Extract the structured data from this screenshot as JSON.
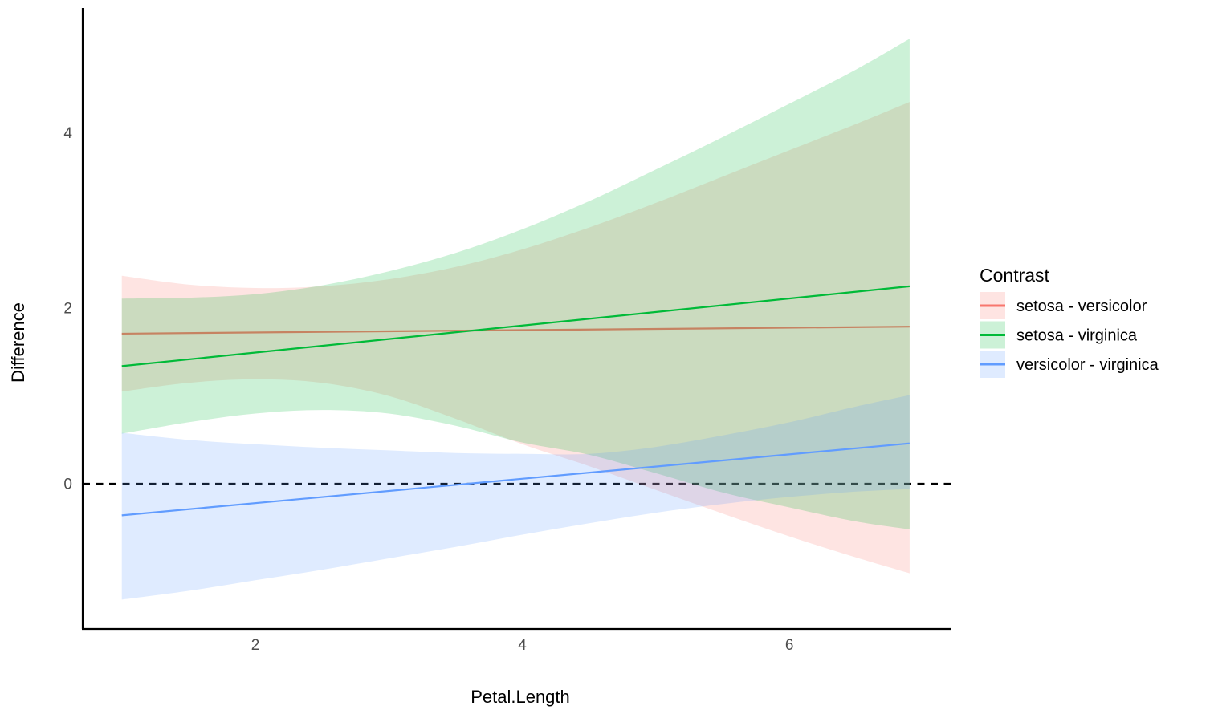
{
  "chart_data": {
    "type": "line",
    "title": "",
    "xlabel": "Petal.Length",
    "ylabel": "Difference",
    "legend_title": "Contrast",
    "legend_position": "right",
    "grid": false,
    "xlim": [
      0.71,
      7.21
    ],
    "ylim": [
      -1.65,
      5.42
    ],
    "x_data_range": [
      1.0,
      6.9
    ],
    "x_ticks": [
      2,
      4,
      6
    ],
    "y_ticks": [
      0,
      2,
      4
    ],
    "x_tick_labels": [
      "2",
      "4",
      "6"
    ],
    "y_tick_labels": [
      "0",
      "2",
      "4"
    ],
    "reference_line": {
      "y": 0,
      "style": "dashed",
      "color": "#000000"
    },
    "ribbon_opacity": 0.2,
    "sample_x": [
      1,
      1.5,
      2,
      2.5,
      3,
      3.5,
      4,
      4.5,
      5,
      5.5,
      6,
      6.5,
      6.9
    ],
    "series": [
      {
        "name": "setosa - versicolor",
        "color": "#F8766D",
        "line": {
          "x": [
            1,
            6.9
          ],
          "y": [
            1.71,
            1.79
          ]
        },
        "ribbon_upper": [
          2.37,
          2.27,
          2.23,
          2.25,
          2.33,
          2.47,
          2.67,
          2.92,
          3.2,
          3.5,
          3.8,
          4.1,
          4.35
        ],
        "ribbon_lower": [
          1.05,
          1.15,
          1.19,
          1.15,
          1.0,
          0.74,
          0.45,
          0.2,
          -0.07,
          -0.34,
          -0.6,
          -0.84,
          -1.02
        ]
      },
      {
        "name": "setosa - virginica",
        "color": "#00BA38",
        "line": {
          "x": [
            1,
            6.9
          ],
          "y": [
            1.34,
            2.25
          ]
        },
        "ribbon_upper": [
          2.11,
          2.12,
          2.16,
          2.26,
          2.42,
          2.63,
          2.9,
          3.22,
          3.58,
          3.95,
          4.33,
          4.72,
          5.07
        ],
        "ribbon_lower": [
          0.57,
          0.7,
          0.8,
          0.84,
          0.8,
          0.66,
          0.47,
          0.33,
          0.12,
          -0.1,
          -0.27,
          -0.43,
          -0.52
        ]
      },
      {
        "name": "versicolor - virginica",
        "color": "#619CFF",
        "line": {
          "x": [
            1,
            6.9
          ],
          "y": [
            -0.36,
            0.46
          ]
        },
        "ribbon_upper": [
          0.58,
          0.5,
          0.45,
          0.41,
          0.38,
          0.35,
          0.34,
          0.34,
          0.42,
          0.55,
          0.7,
          0.88,
          1.01
        ],
        "ribbon_lower": [
          -1.32,
          -1.22,
          -1.1,
          -0.98,
          -0.85,
          -0.72,
          -0.58,
          -0.45,
          -0.33,
          -0.23,
          -0.15,
          -0.09,
          -0.06
        ]
      }
    ]
  }
}
